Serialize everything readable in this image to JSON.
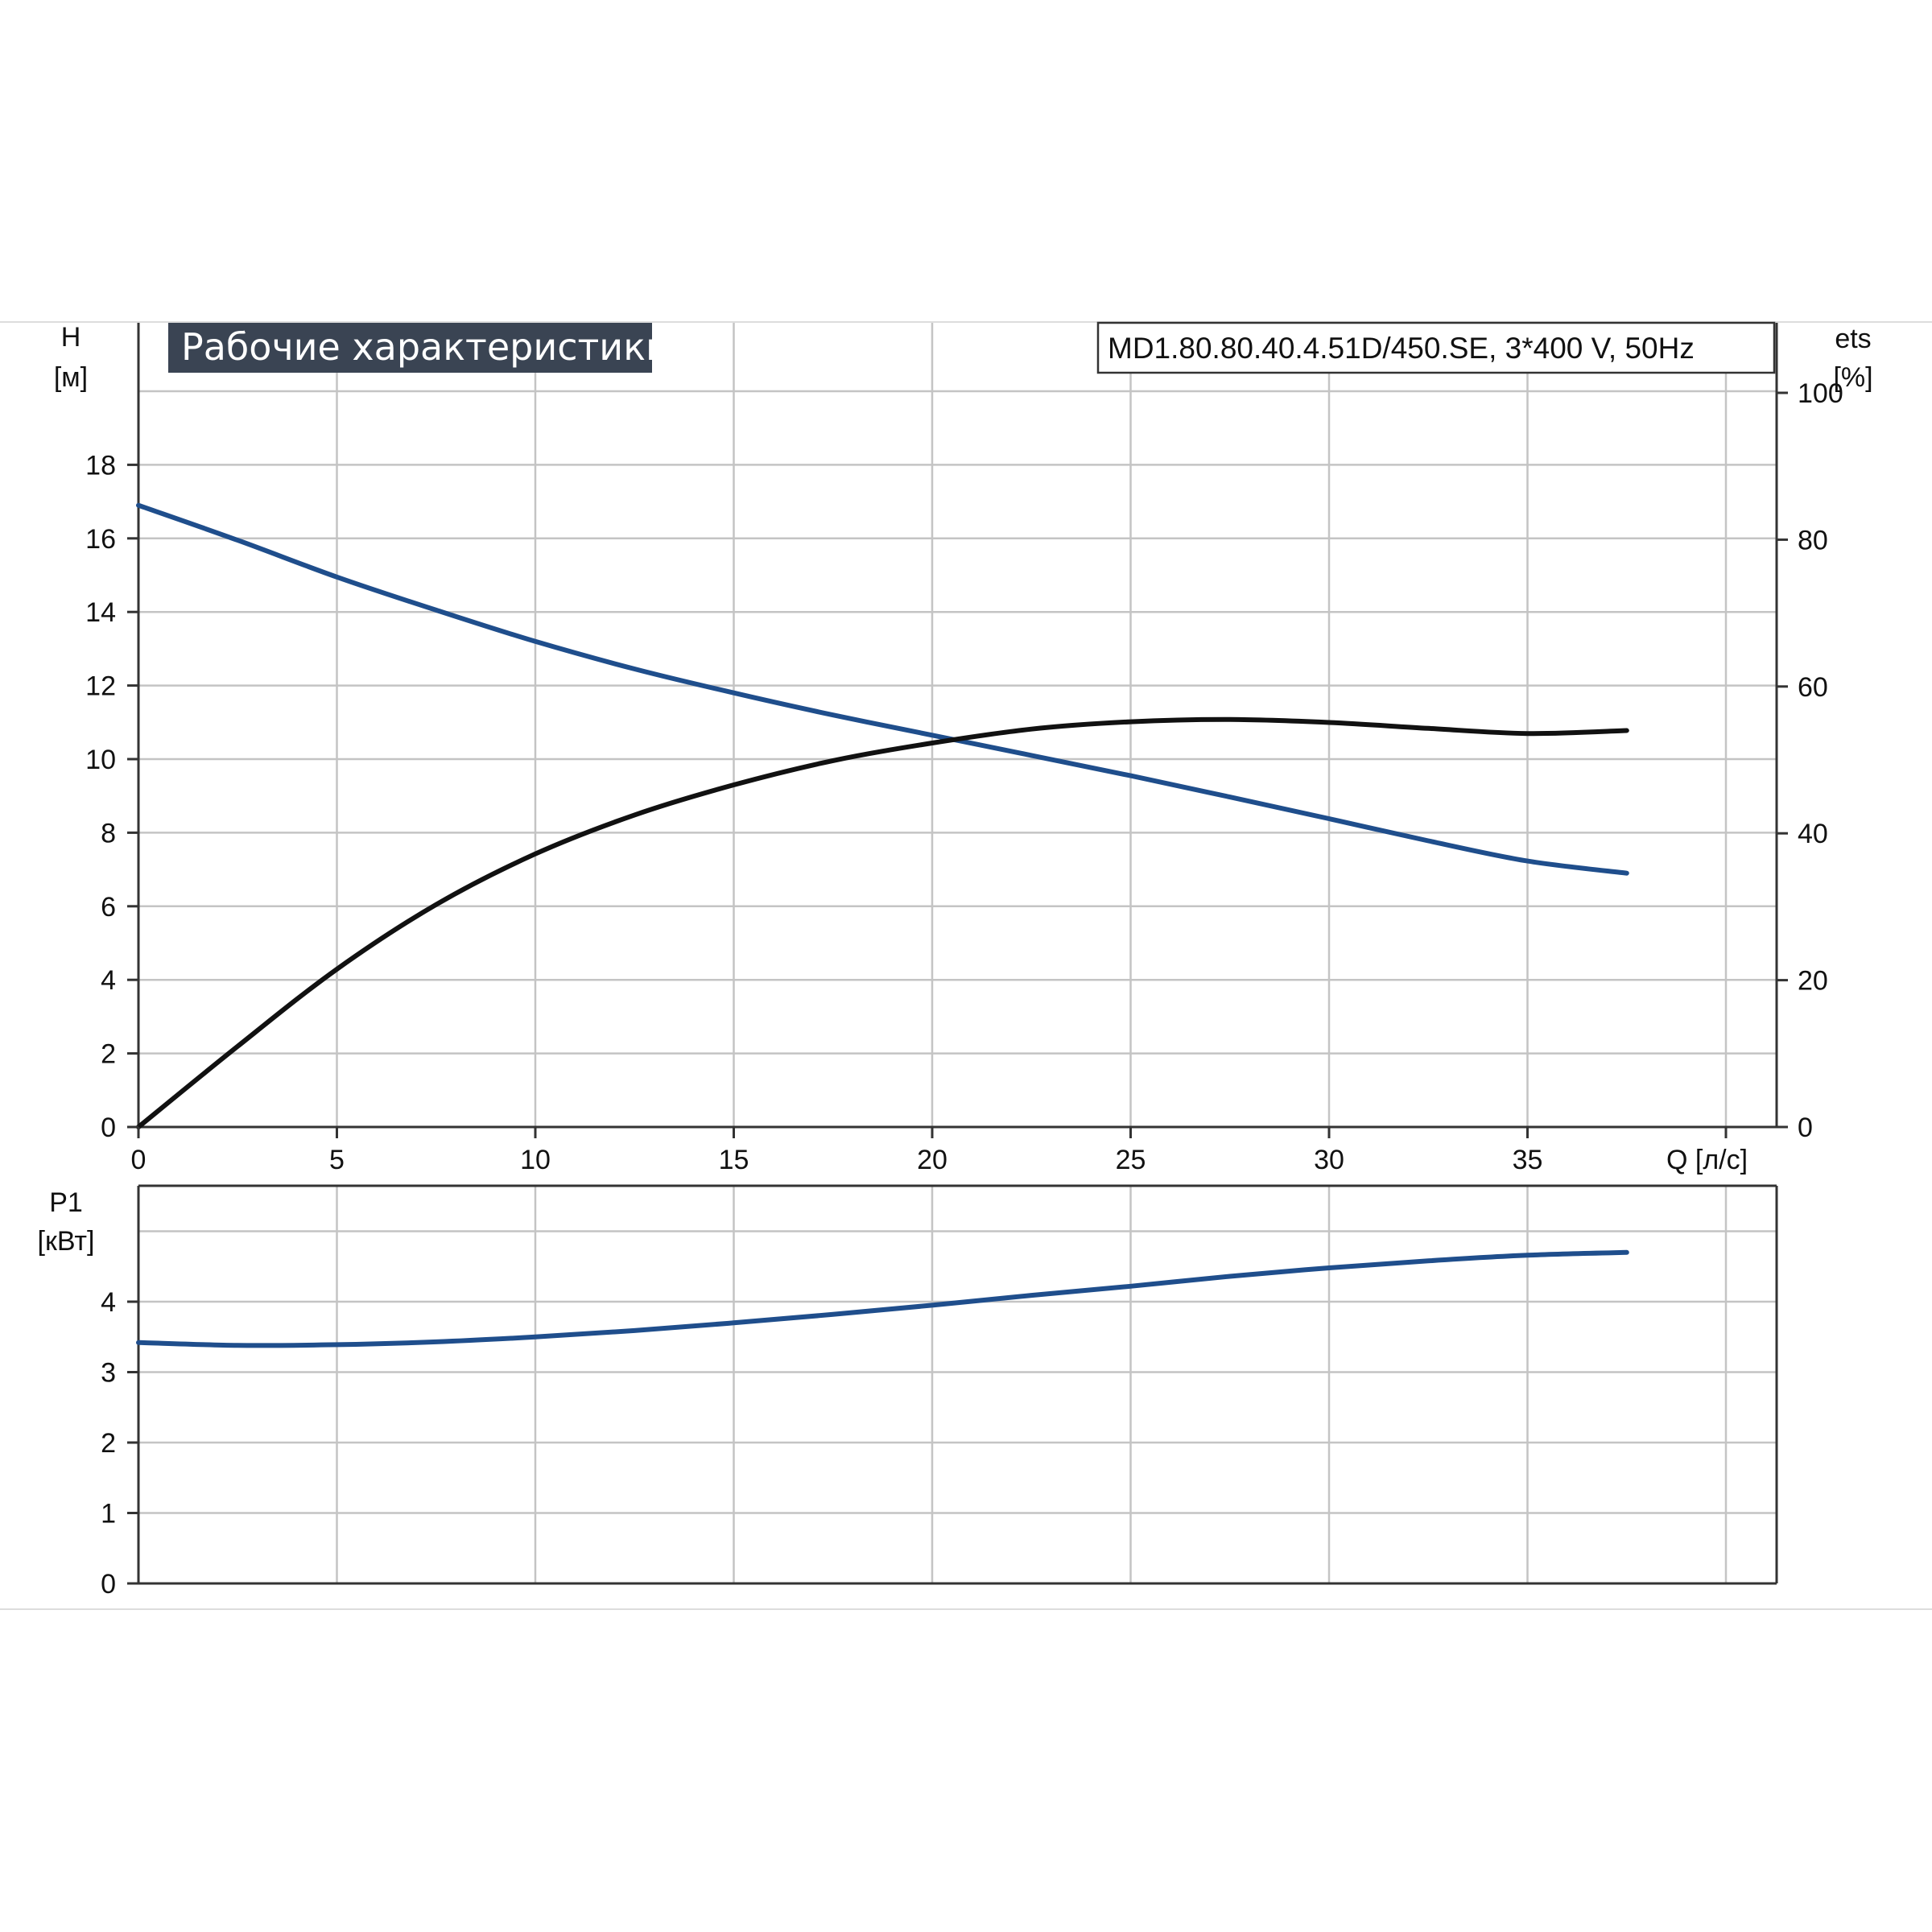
{
  "colors": {
    "curve_blue": "#1f4e8c",
    "curve_black": "#111111",
    "title_bg": "#3a4453",
    "grid": "#c4c4c4",
    "frame": "#333333"
  },
  "header": {
    "title": "Рабочие характеристики",
    "model": "MD1.80.80.40.4.51D/450.SE, 3*400 V, 50Hz"
  },
  "chart_data": [
    {
      "type": "line",
      "name": "upper",
      "xlabel": "Q [л/с]",
      "ylabel": [
        "H",
        "[м]"
      ],
      "y2label": [
        "ets",
        "[%]"
      ],
      "xlim": [
        0,
        40
      ],
      "ylim": [
        0,
        20
      ],
      "y2lim": [
        0,
        100
      ],
      "x_ticks": [
        "0",
        "5",
        "10",
        "15",
        "20",
        "25",
        "30",
        "35"
      ],
      "y_ticks": [
        "0",
        "2",
        "4",
        "6",
        "8",
        "10",
        "12",
        "14",
        "16",
        "18"
      ],
      "y2_ticks": [
        "0",
        "20",
        "40",
        "60",
        "80",
        "100"
      ],
      "grid": true,
      "series": [
        {
          "axis": "left",
          "color": "#1f4e8c",
          "x": [
            0,
            2.5,
            5,
            7.5,
            10,
            12.5,
            15,
            17.5,
            20,
            22.5,
            25,
            27.5,
            30,
            32.5,
            35,
            37.5
          ],
          "y": [
            16.9,
            15.95,
            14.95,
            14.05,
            13.2,
            12.45,
            11.8,
            11.2,
            10.65,
            10.1,
            9.55,
            8.97,
            8.38,
            7.78,
            7.23,
            6.9
          ]
        },
        {
          "axis": "right",
          "color": "#111111",
          "x": [
            0,
            2.5,
            5,
            7.5,
            10,
            12.5,
            15,
            17.5,
            20,
            22.5,
            25,
            27.5,
            30,
            32.5,
            35,
            37.5
          ],
          "y": [
            0,
            11,
            21.5,
            30.3,
            37.2,
            42.5,
            46.6,
            49.9,
            52.3,
            54.2,
            55.2,
            55.5,
            55.1,
            54.3,
            53.6,
            54
          ]
        }
      ]
    },
    {
      "type": "line",
      "name": "lower",
      "ylabel": [
        "P1",
        "[кВт]"
      ],
      "xlim": [
        0,
        40
      ],
      "ylim": [
        0,
        5
      ],
      "y_ticks": [
        "0",
        "1",
        "2",
        "3",
        "4"
      ],
      "grid": true,
      "series": [
        {
          "axis": "left",
          "color": "#1f4e8c",
          "x": [
            0,
            2.5,
            5,
            7.5,
            10,
            12.5,
            15,
            17.5,
            20,
            22.5,
            25,
            27.5,
            30,
            32.5,
            35,
            37.5
          ],
          "y": [
            3.42,
            3.38,
            3.39,
            3.43,
            3.5,
            3.59,
            3.7,
            3.82,
            3.95,
            4.09,
            4.22,
            4.36,
            4.48,
            4.58,
            4.66,
            4.7
          ]
        }
      ]
    }
  ]
}
